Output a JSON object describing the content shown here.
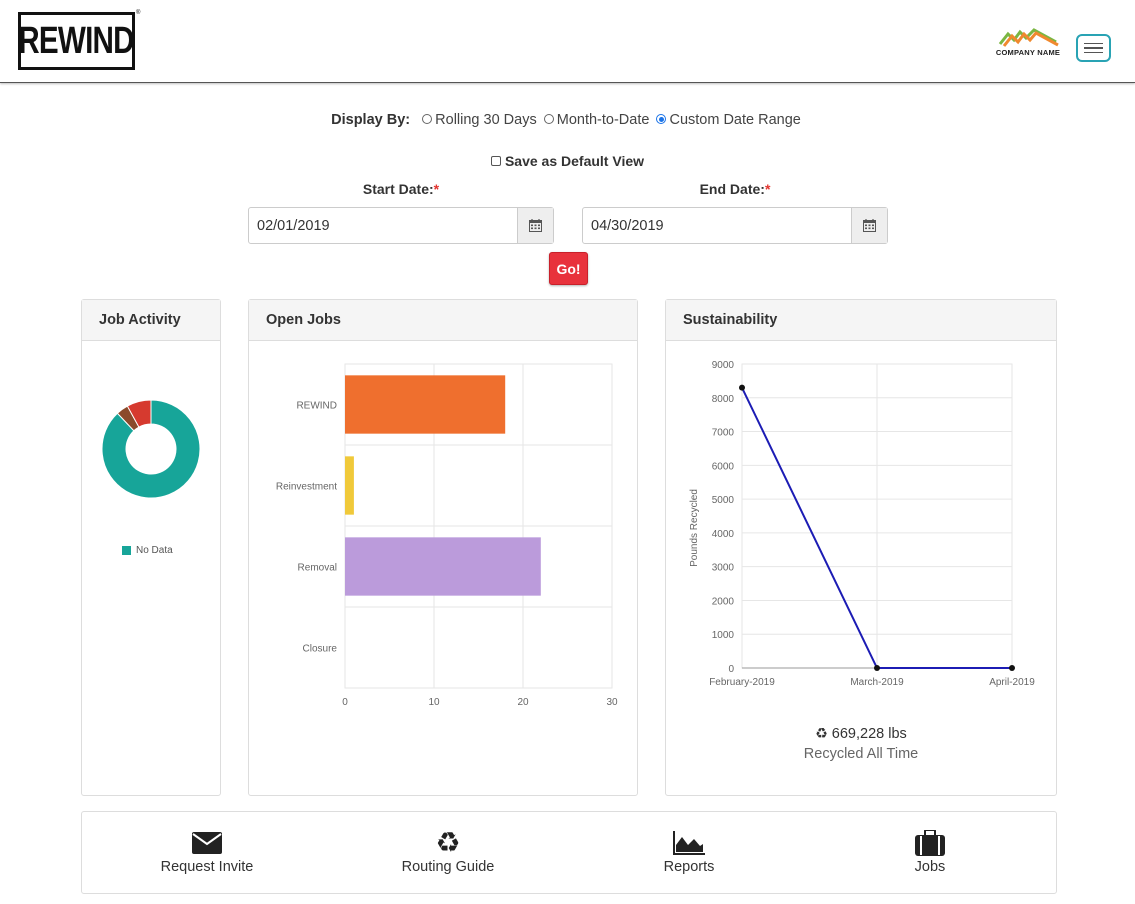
{
  "header": {
    "logo_text": "REWIND",
    "logo_tm": "®",
    "company_name": "COMPANY NAME",
    "colors": {
      "company_logo_orange": "#f0892e",
      "company_logo_green": "#7ab642",
      "menu_border": "#29a3b4"
    }
  },
  "display_by": {
    "label": "Display By:",
    "options": [
      {
        "label": "Rolling 30 Days",
        "selected": false
      },
      {
        "label": "Month-to-Date",
        "selected": false
      },
      {
        "label": "Custom Date Range",
        "selected": true
      }
    ]
  },
  "save_default": {
    "label": "Save as Default View",
    "checked": false
  },
  "start_date": {
    "label": "Start Date:",
    "required_mark": "*",
    "value": "02/01/2019",
    "icon": "calendar-icon"
  },
  "end_date": {
    "label": "End Date:",
    "required_mark": "*",
    "value": "04/30/2019",
    "icon": "calendar-icon"
  },
  "go_button": {
    "label": "Go!",
    "color": "#e8323c"
  },
  "panels": {
    "job_activity": {
      "title": "Job Activity",
      "legend": [
        {
          "label": "No Data",
          "color": "#17a599"
        }
      ]
    },
    "open_jobs": {
      "title": "Open Jobs"
    },
    "sustainability": {
      "title": "Sustainability",
      "total_value": "669,228 lbs",
      "total_label": "Recycled All Time",
      "icon": "recycle-icon"
    }
  },
  "chart_data": [
    {
      "type": "pie",
      "donut": true,
      "slices": [
        {
          "label": "No Data",
          "value": 88,
          "color": "#17a599"
        },
        {
          "label": "",
          "value": 4,
          "color": "#8b4a2b"
        },
        {
          "label": "",
          "value": 8,
          "color": "#d63a2f"
        }
      ],
      "legend_position": "bottom"
    },
    {
      "type": "bar",
      "orientation": "horizontal",
      "categories": [
        "REWIND",
        "Reinvestment",
        "Removal",
        "Closure"
      ],
      "values": [
        18,
        1,
        22,
        0
      ],
      "colors": [
        "#ef6f2e",
        "#f0c93a",
        "#bb9bdb",
        "#999999"
      ],
      "xlim": [
        0,
        30
      ],
      "xticks": [
        0,
        10,
        20,
        30
      ],
      "grid": true
    },
    {
      "type": "line",
      "x": [
        "February-2019",
        "March-2019",
        "April-2019"
      ],
      "series": [
        {
          "values": [
            8300,
            0,
            0
          ],
          "color": "#1c1cb4"
        }
      ],
      "ylabel": "Pounds Recycled",
      "ylim": [
        0,
        9000
      ],
      "yticks": [
        0,
        1000,
        2000,
        3000,
        4000,
        5000,
        6000,
        7000,
        8000,
        9000
      ],
      "grid": true
    }
  ],
  "footer_nav": [
    {
      "label": "Request Invite",
      "icon": "envelope-icon"
    },
    {
      "label": "Routing Guide",
      "icon": "recycle-icon"
    },
    {
      "label": "Reports",
      "icon": "area-chart-icon"
    },
    {
      "label": "Jobs",
      "icon": "briefcase-icon"
    }
  ]
}
